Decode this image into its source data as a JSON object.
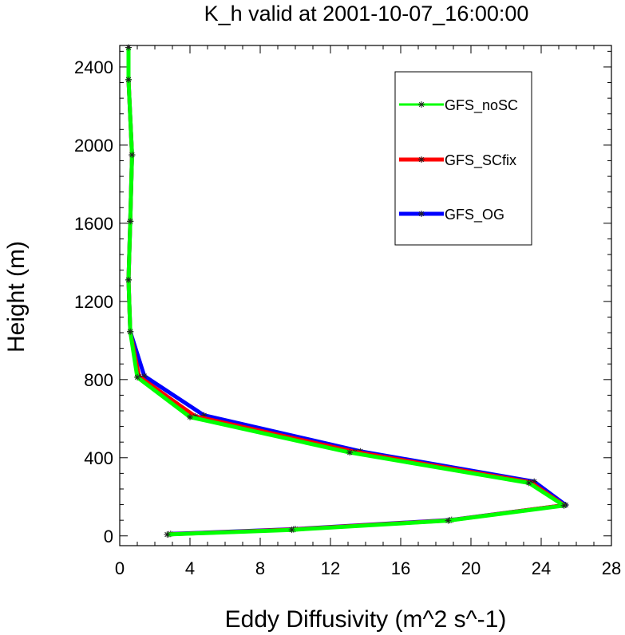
{
  "chart_data": {
    "type": "line",
    "title": "K_h valid at 2001-10-07_16:00:00",
    "xlabel": "Eddy Diffusivity (m^2 s^-1)",
    "ylabel": "Height (m)",
    "xlim": [
      0,
      28
    ],
    "ylim": [
      -50,
      2510
    ],
    "xticks": [
      "0",
      "4",
      "8",
      "12",
      "16",
      "20",
      "24",
      "28"
    ],
    "yticks": [
      "0",
      "400",
      "800",
      "1200",
      "1600",
      "2000",
      "2400"
    ],
    "legend_position": "top-right",
    "series": [
      {
        "name": "GFS_OG",
        "color": "#0000ff",
        "points": [
          [
            2.9,
            10
          ],
          [
            10.0,
            35
          ],
          [
            18.9,
            82
          ],
          [
            25.4,
            158
          ],
          [
            23.6,
            278
          ],
          [
            13.7,
            433
          ],
          [
            4.8,
            617
          ],
          [
            1.4,
            818
          ],
          [
            0.6,
            1045
          ],
          [
            0.5,
            1310
          ],
          [
            0.6,
            1610
          ],
          [
            0.7,
            1950
          ],
          [
            0.5,
            2335
          ],
          [
            0.5,
            2500
          ]
        ]
      },
      {
        "name": "GFS_SCfix",
        "color": "#ff0000",
        "points": [
          [
            2.8,
            8
          ],
          [
            9.9,
            33
          ],
          [
            18.8,
            80
          ],
          [
            25.3,
            157
          ],
          [
            23.4,
            274
          ],
          [
            13.4,
            430
          ],
          [
            4.3,
            612
          ],
          [
            1.1,
            815
          ],
          [
            0.6,
            1045
          ],
          [
            0.5,
            1310
          ],
          [
            0.6,
            1610
          ],
          [
            0.7,
            1950
          ],
          [
            0.5,
            2335
          ],
          [
            0.5,
            2500
          ]
        ]
      },
      {
        "name": "GFS_noSC",
        "color": "#00ff00",
        "points": [
          [
            2.7,
            7
          ],
          [
            9.8,
            31
          ],
          [
            18.7,
            78
          ],
          [
            25.3,
            155
          ],
          [
            23.3,
            271
          ],
          [
            13.1,
            427
          ],
          [
            4.0,
            608
          ],
          [
            1.0,
            812
          ],
          [
            0.6,
            1045
          ],
          [
            0.5,
            1310
          ],
          [
            0.6,
            1610
          ],
          [
            0.7,
            1950
          ],
          [
            0.5,
            2335
          ],
          [
            0.5,
            2500
          ]
        ]
      }
    ],
    "legend": [
      "GFS_noSC",
      "GFS_SCfix",
      "GFS_OG"
    ]
  }
}
